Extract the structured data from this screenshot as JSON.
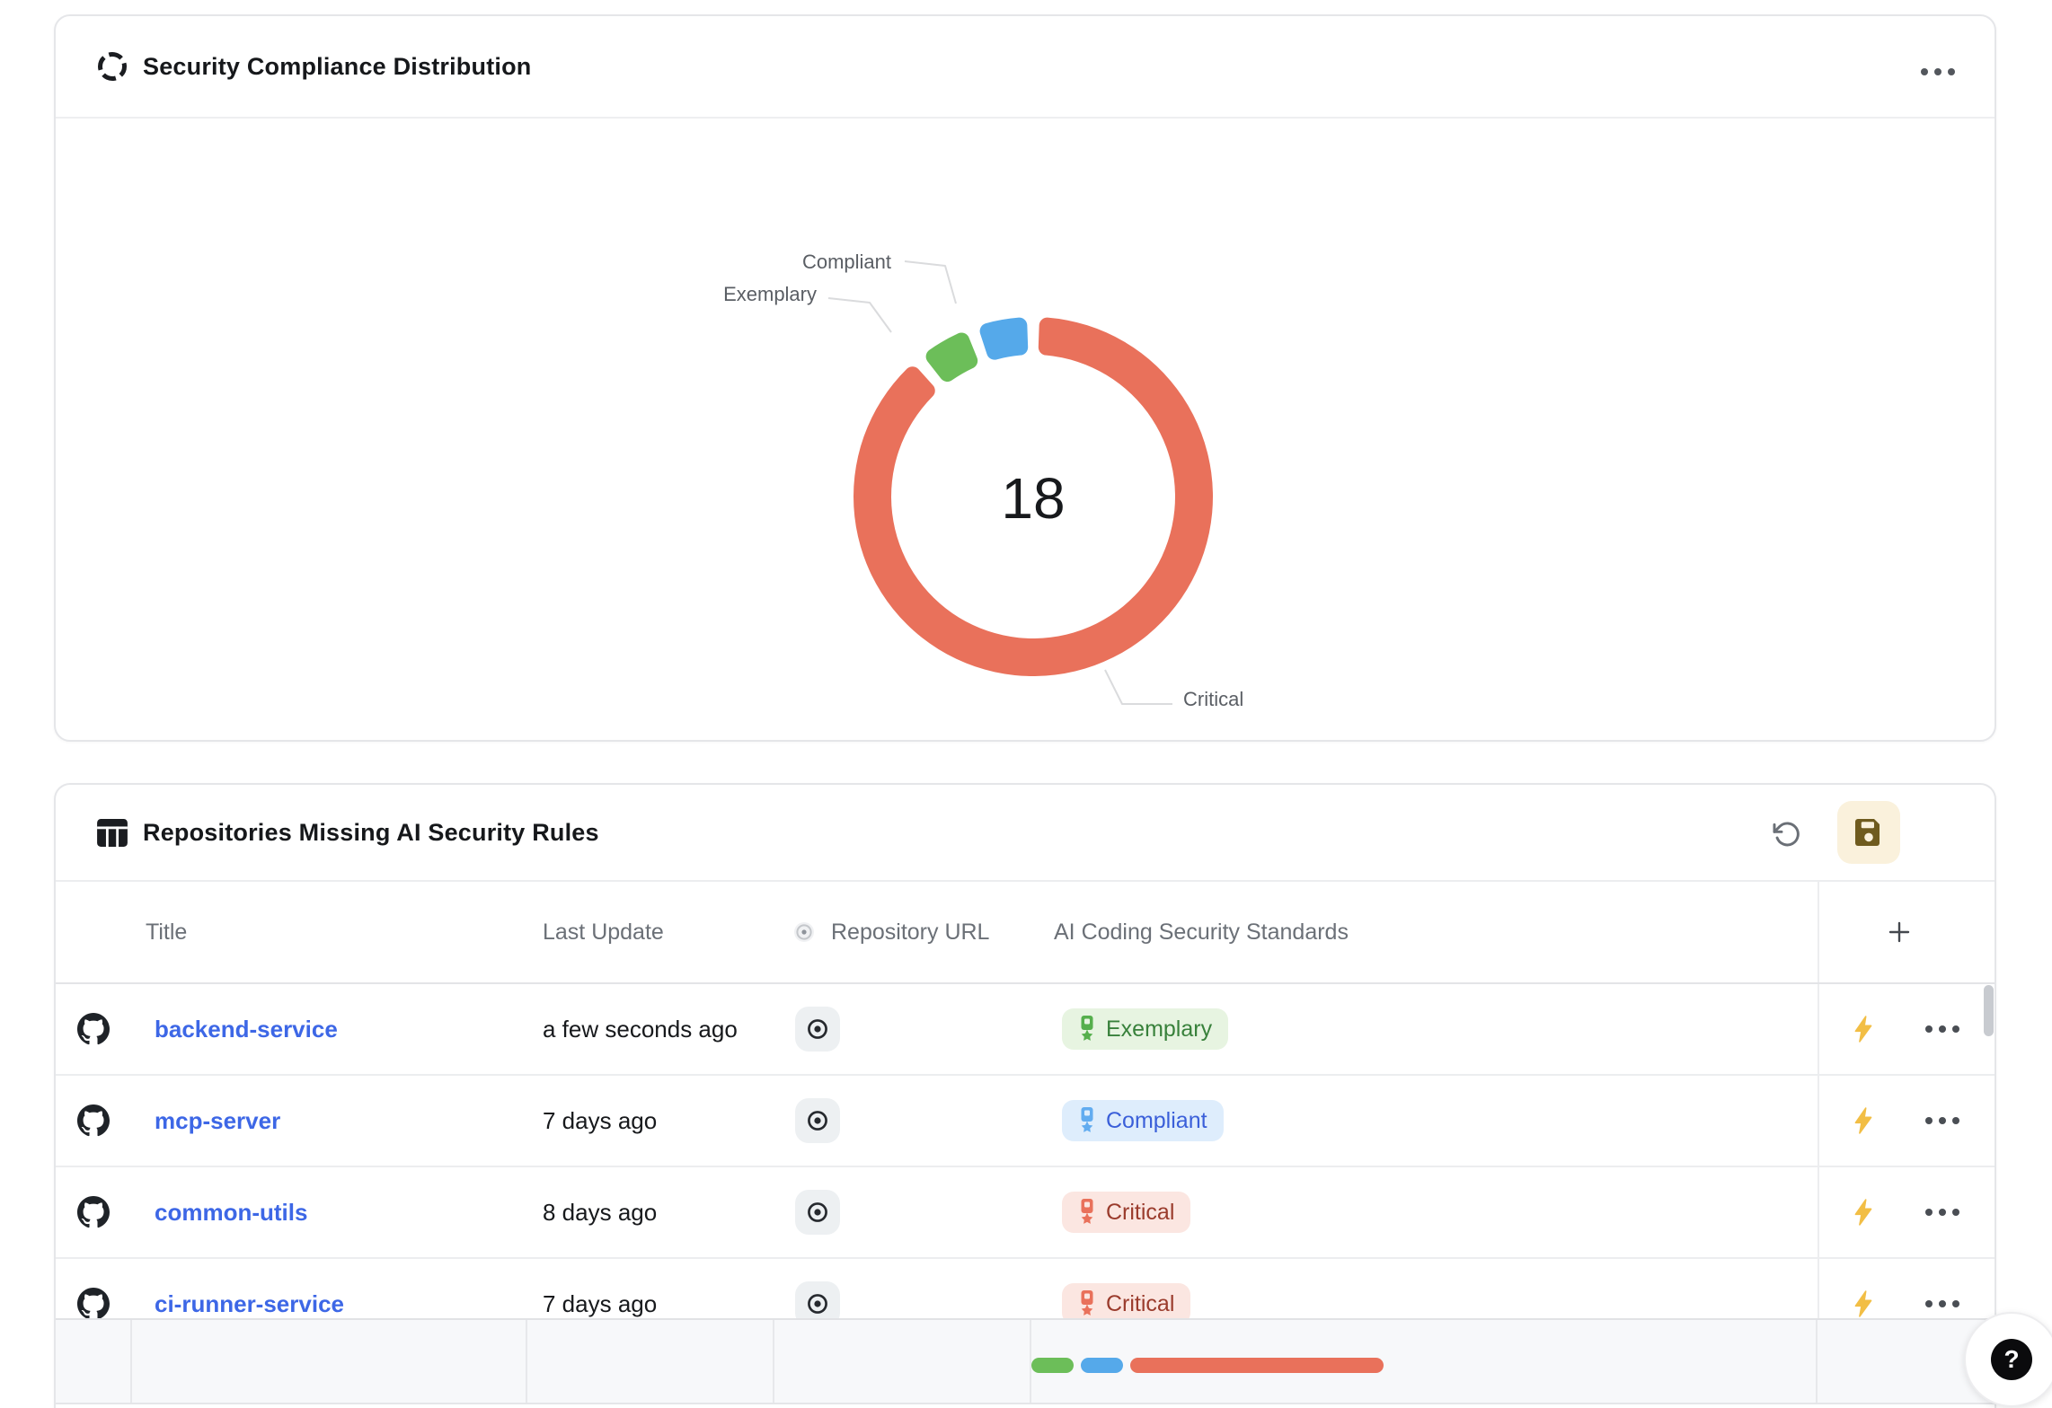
{
  "compliance_card": {
    "title": "Security Compliance Distribution",
    "chart_data": {
      "type": "pie",
      "donut": true,
      "title": "Security Compliance Distribution",
      "center_value": "18",
      "segments": [
        {
          "label": "Critical",
          "value": 16,
          "color": "#E9715B"
        },
        {
          "label": "Exemplary",
          "value": 1,
          "color": "#6CBE59"
        },
        {
          "label": "Compliant",
          "value": 1,
          "color": "#55A9EA"
        }
      ],
      "legend_position": "bottom",
      "callout_labels": [
        "Compliant",
        "Exemplary",
        "Critical"
      ]
    }
  },
  "repos_card": {
    "title": "Repositories Missing AI Security Rules",
    "columns": {
      "title": "Title",
      "last_update": "Last Update",
      "repo_url": "Repository URL",
      "standards": "AI Coding Security Standards"
    },
    "rows": [
      {
        "title": "backend-service",
        "last_update": "a few seconds ago",
        "standard": "Exemplary",
        "standard_type": "exemplary"
      },
      {
        "title": "mcp-server",
        "last_update": "7 days ago",
        "standard": "Compliant",
        "standard_type": "compliant"
      },
      {
        "title": "common-utils",
        "last_update": "8 days ago",
        "standard": "Critical",
        "standard_type": "critical"
      },
      {
        "title": "ci-runner-service",
        "last_update": "7 days ago",
        "standard": "Critical",
        "standard_type": "critical"
      }
    ],
    "standard_styles": {
      "exemplary": {
        "bg": "#E7F4E1",
        "text": "#38813B",
        "icon": "#56AF4D"
      },
      "compliant": {
        "bg": "#DEEDFC",
        "text": "#3A5FD9",
        "icon": "#62ACF0"
      },
      "critical": {
        "bg": "#FBE6E1",
        "text": "#9A3B2C",
        "icon": "#E9715B"
      }
    },
    "footer_bar": [
      {
        "type": "exemplary",
        "units": 1,
        "color": "#6CBE59"
      },
      {
        "type": "compliant",
        "units": 1,
        "color": "#55A9EA"
      },
      {
        "type": "critical",
        "units": 6,
        "color": "#E9715B"
      }
    ],
    "icons": {
      "undo": "rotate-ccw",
      "save": "floppy-disk",
      "row_action": "lightning-bolt",
      "row_menu": "ellipsis",
      "repo_url": "dot-circle",
      "repo_host": "github"
    },
    "action_colors": {
      "lightning": "#F2BE45",
      "save_icon": "#6F5B1E",
      "save_bg": "#FAF1DC"
    }
  },
  "help_button": {
    "label": "?"
  }
}
